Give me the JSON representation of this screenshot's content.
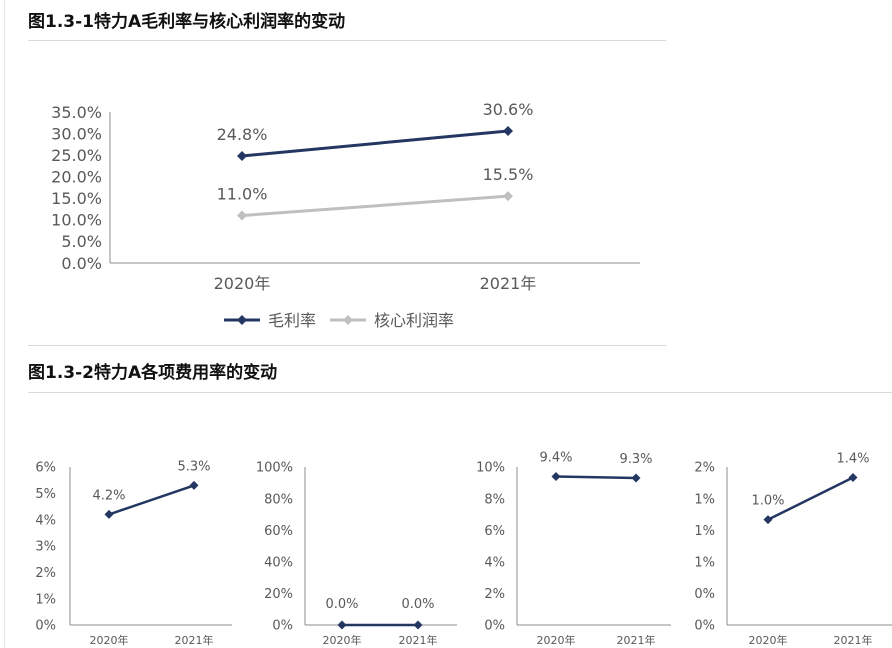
{
  "figure1": {
    "title": "图1.3-1特力A毛利率与核心利润率的变动"
  },
  "figure2": {
    "title": "图1.3-2特力A各项费用率的变动"
  },
  "colors": {
    "series_dark": "#243763",
    "series_light": "#bfbfbf",
    "axis": "#8c8c8c",
    "label_text": "#595959"
  },
  "chart_data": [
    {
      "type": "line",
      "x": [
        "2020年",
        "2021年"
      ],
      "ylim": [
        0,
        35
      ],
      "yticks": [
        "0.0%",
        "5.0%",
        "10.0%",
        "15.0%",
        "20.0%",
        "25.0%",
        "30.0%",
        "35.0%"
      ],
      "series": [
        {
          "name": "毛利率",
          "values": [
            24.8,
            30.6
          ],
          "labels": [
            "24.8%",
            "30.6%"
          ],
          "color": "#243763",
          "marker": "diamond"
        },
        {
          "name": "核心利润率",
          "values": [
            11.0,
            15.5
          ],
          "labels": [
            "11.0%",
            "15.5%"
          ],
          "color": "#bfbfbf",
          "marker": "diamond"
        }
      ],
      "legend": "bottom"
    },
    {
      "type": "line",
      "x": [
        "2020年",
        "2021年"
      ],
      "ylim": [
        0,
        6
      ],
      "yticks": [
        "0%",
        "1%",
        "2%",
        "3%",
        "4%",
        "5%",
        "6%"
      ],
      "series": [
        {
          "values": [
            4.2,
            5.3
          ],
          "labels": [
            "4.2%",
            "5.3%"
          ],
          "color": "#243763"
        }
      ]
    },
    {
      "type": "line",
      "x": [
        "2020年",
        "2021年"
      ],
      "ylim": [
        0,
        100
      ],
      "yticks": [
        "0%",
        "20%",
        "40%",
        "60%",
        "80%",
        "100%"
      ],
      "series": [
        {
          "values": [
            0.0,
            0.0
          ],
          "labels": [
            "0.0%",
            "0.0%"
          ],
          "color": "#243763"
        }
      ]
    },
    {
      "type": "line",
      "x": [
        "2020年",
        "2021年"
      ],
      "ylim": [
        0,
        10
      ],
      "yticks": [
        "0%",
        "2%",
        "4%",
        "6%",
        "8%",
        "10%"
      ],
      "series": [
        {
          "values": [
            9.4,
            9.3
          ],
          "labels": [
            "9.4%",
            "9.3%"
          ],
          "color": "#243763"
        }
      ]
    },
    {
      "type": "line",
      "x": [
        "2020年",
        "2021年"
      ],
      "ylim": [
        0,
        1.5
      ],
      "yticks": [
        "0%",
        "0%",
        "1%",
        "1%",
        "1%",
        "2%"
      ],
      "series": [
        {
          "values": [
            1.0,
            1.4
          ],
          "labels": [
            "1.0%",
            "1.4%"
          ],
          "color": "#243763"
        }
      ]
    }
  ]
}
